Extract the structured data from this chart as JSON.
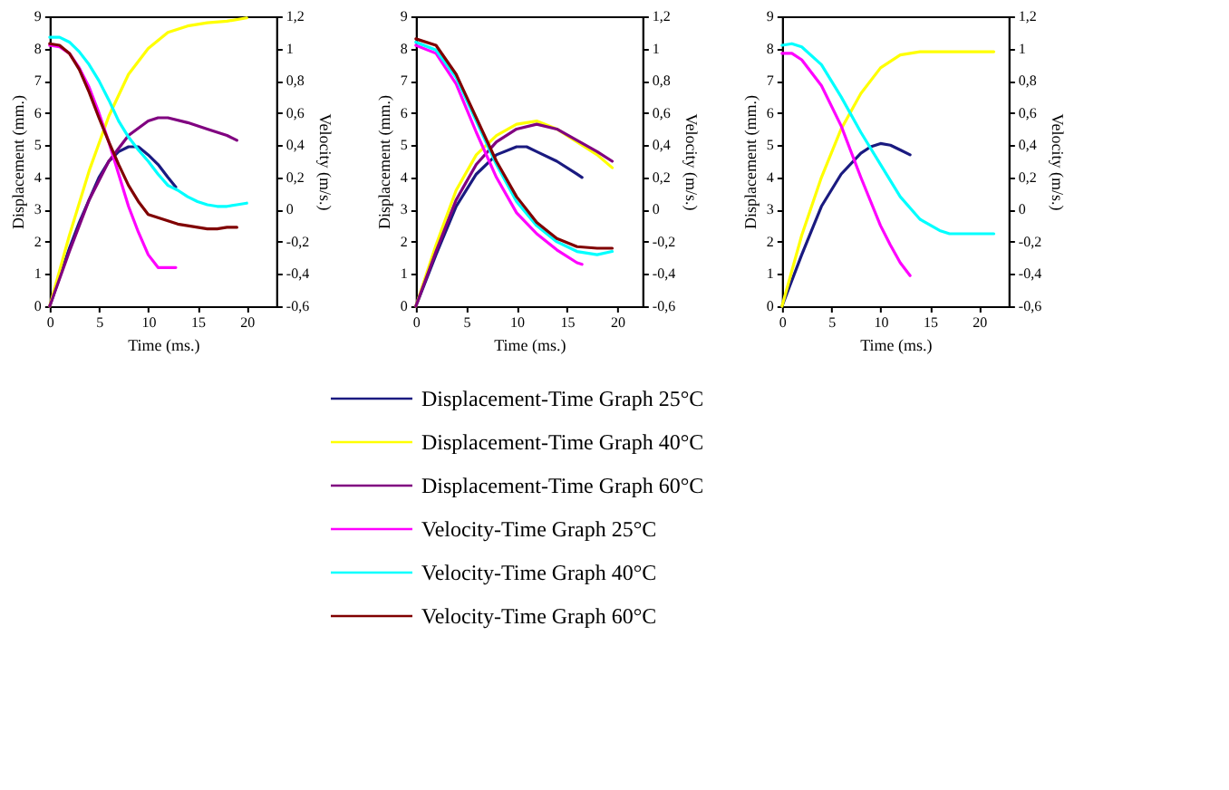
{
  "chart_data": [
    {
      "type": "line",
      "xlabel": "Time (ms.)",
      "ylabel": "Displacement (mm.)",
      "y2label": "Velocity (m/s.)",
      "xlim": [
        0,
        23
      ],
      "xticks": [
        0,
        5,
        10,
        15,
        20
      ],
      "ylim": [
        0,
        9
      ],
      "yticks": [
        0,
        1,
        2,
        3,
        4,
        5,
        6,
        7,
        8,
        9
      ],
      "y2lim": [
        -0.6,
        1.2
      ],
      "y2ticks": [
        {
          "value": -0.6,
          "label": "-0,6"
        },
        {
          "value": -0.4,
          "label": "-0,4"
        },
        {
          "value": -0.2,
          "label": "-0,2"
        },
        0,
        {
          "value": 0.2,
          "label": "0,2"
        },
        {
          "value": 0.4,
          "label": "0,4"
        },
        {
          "value": 0.6,
          "label": "0,6"
        },
        {
          "value": 0.8,
          "label": "0,8"
        },
        1,
        {
          "value": 1.2,
          "label": "1,2"
        }
      ],
      "grid": false,
      "legend": "bottom",
      "marker": "none",
      "line_style": "solid",
      "series": [
        {
          "name": "Displacement-Time Graph 25°C",
          "color": "#1a1a80",
          "x": [
            0,
            1,
            2,
            3,
            4,
            5,
            6,
            7,
            8,
            9,
            10,
            11,
            12,
            12.8
          ],
          "values": [
            0,
            0.9,
            1.8,
            2.6,
            3.3,
            4.0,
            4.5,
            4.8,
            4.95,
            4.95,
            4.7,
            4.4,
            4.0,
            3.7
          ]
        },
        {
          "name": "Displacement-Time Graph 40°C",
          "color": "#ffff00",
          "x": [
            0,
            2,
            4,
            6,
            8,
            10,
            12,
            14,
            16,
            18,
            20
          ],
          "values": [
            0,
            2.2,
            4.2,
            5.9,
            7.2,
            8.0,
            8.5,
            8.7,
            8.8,
            8.85,
            8.95
          ]
        },
        {
          "name": "Displacement-Time Graph 60°C",
          "color": "#800080",
          "x": [
            0,
            2,
            4,
            6,
            8,
            10,
            11,
            12,
            14,
            16,
            18,
            19
          ],
          "values": [
            0,
            1.7,
            3.3,
            4.5,
            5.3,
            5.75,
            5.85,
            5.85,
            5.7,
            5.5,
            5.3,
            5.15
          ]
        },
        {
          "name": "Velocity-Time Graph 25°C",
          "color": "#ff00ff",
          "axis": "y2",
          "x": [
            0,
            1,
            2,
            3,
            4,
            5,
            6,
            7,
            8,
            9,
            10,
            11,
            12,
            12.8
          ],
          "values": [
            1.02,
            1.01,
            0.97,
            0.88,
            0.76,
            0.6,
            0.42,
            0.22,
            0.02,
            -0.14,
            -0.28,
            -0.36,
            -0.36,
            -0.36
          ]
        },
        {
          "name": "Velocity-Time Graph 40°C",
          "color": "#00ffff",
          "axis": "y2",
          "x": [
            0,
            1,
            2,
            3,
            4,
            5,
            6,
            7,
            8,
            9,
            10,
            11,
            12,
            13,
            14,
            15,
            16,
            17,
            18,
            19,
            20
          ],
          "values": [
            1.07,
            1.07,
            1.04,
            0.98,
            0.9,
            0.8,
            0.68,
            0.55,
            0.45,
            0.37,
            0.3,
            0.22,
            0.15,
            0.12,
            0.08,
            0.05,
            0.03,
            0.02,
            0.02,
            0.03,
            0.04
          ]
        },
        {
          "name": "Velocity-Time Graph 60°C",
          "color": "#800000",
          "axis": "y2",
          "x": [
            0,
            1,
            2,
            3,
            4,
            5,
            6,
            7,
            8,
            9,
            10,
            11,
            12,
            13,
            14,
            15,
            16,
            17,
            18,
            19
          ],
          "values": [
            1.03,
            1.02,
            0.97,
            0.87,
            0.73,
            0.57,
            0.42,
            0.28,
            0.15,
            0.05,
            -0.03,
            -0.05,
            -0.07,
            -0.09,
            -0.1,
            -0.11,
            -0.12,
            -0.12,
            -0.11,
            -0.11
          ]
        }
      ]
    },
    {
      "type": "line",
      "xlabel": "Time (ms.)",
      "ylabel": "Displacement (mm.)",
      "y2label": "Velocity (m/s.)",
      "xlim": [
        0,
        22.5
      ],
      "xticks": [
        0,
        5,
        10,
        15,
        20
      ],
      "ylim": [
        0,
        9
      ],
      "yticks": [
        0,
        1,
        2,
        3,
        4,
        5,
        6,
        7,
        8,
        9
      ],
      "y2lim": [
        -0.6,
        1.2
      ],
      "y2ticks": [
        {
          "value": -0.6,
          "label": "-0,6"
        },
        {
          "value": -0.4,
          "label": "-0,4"
        },
        {
          "value": -0.2,
          "label": "-0,2"
        },
        0,
        {
          "value": 0.2,
          "label": "0,2"
        },
        {
          "value": 0.4,
          "label": "0,4"
        },
        {
          "value": 0.6,
          "label": "0,6"
        },
        {
          "value": 0.8,
          "label": "0,8"
        },
        1,
        {
          "value": 1.2,
          "label": "1,2"
        }
      ],
      "grid": false,
      "legend": "bottom",
      "marker": "none",
      "line_style": "solid",
      "series": [
        {
          "name": "Displacement-Time Graph 25°C",
          "color": "#1a1a80",
          "x": [
            0,
            2,
            4,
            6,
            8,
            10,
            11,
            12,
            14,
            16,
            16.5
          ],
          "values": [
            0,
            1.6,
            3.1,
            4.1,
            4.7,
            4.95,
            4.95,
            4.8,
            4.5,
            4.1,
            4.0
          ]
        },
        {
          "name": "Displacement-Time Graph 40°C",
          "color": "#ffff00",
          "x": [
            0,
            2,
            4,
            6,
            8,
            10,
            12,
            14,
            16,
            18,
            19.5
          ],
          "values": [
            0,
            1.9,
            3.6,
            4.7,
            5.3,
            5.65,
            5.75,
            5.5,
            5.1,
            4.7,
            4.3
          ]
        },
        {
          "name": "Displacement-Time Graph 60°C",
          "color": "#800080",
          "x": [
            0,
            2,
            4,
            6,
            8,
            10,
            12,
            14,
            16,
            18,
            19.5
          ],
          "values": [
            0,
            1.7,
            3.3,
            4.4,
            5.1,
            5.5,
            5.65,
            5.5,
            5.15,
            4.8,
            4.5
          ]
        },
        {
          "name": "Velocity-Time Graph 25°C",
          "color": "#ff00ff",
          "axis": "y2",
          "x": [
            0,
            2,
            4,
            6,
            8,
            10,
            12,
            14,
            16,
            16.5
          ],
          "values": [
            1.02,
            0.97,
            0.78,
            0.48,
            0.2,
            -0.02,
            -0.15,
            -0.25,
            -0.33,
            -0.34
          ]
        },
        {
          "name": "Velocity-Time Graph 40°C",
          "color": "#00ffff",
          "axis": "y2",
          "x": [
            0,
            2,
            4,
            6,
            8,
            10,
            12,
            14,
            16,
            18,
            19.5
          ],
          "values": [
            1.04,
            0.99,
            0.82,
            0.55,
            0.28,
            0.05,
            -0.1,
            -0.2,
            -0.26,
            -0.28,
            -0.26
          ]
        },
        {
          "name": "Velocity-Time Graph 60°C",
          "color": "#800000",
          "axis": "y2",
          "x": [
            0,
            2,
            4,
            6,
            8,
            10,
            12,
            14,
            16,
            18,
            19.5
          ],
          "values": [
            1.06,
            1.02,
            0.84,
            0.57,
            0.3,
            0.08,
            -0.08,
            -0.18,
            -0.23,
            -0.24,
            -0.24
          ]
        }
      ]
    },
    {
      "type": "line",
      "xlabel": "Time (ms.)",
      "ylabel": "Displacement (mm.)",
      "y2label": "Velocity (m/s.)",
      "xlim": [
        0,
        23
      ],
      "xticks": [
        0,
        5,
        10,
        15,
        20
      ],
      "ylim": [
        0,
        9
      ],
      "yticks": [
        0,
        1,
        2,
        3,
        4,
        5,
        6,
        7,
        8,
        9
      ],
      "y2lim": [
        -0.6,
        1.2
      ],
      "y2ticks": [
        {
          "value": -0.6,
          "label": "-0,6"
        },
        {
          "value": -0.4,
          "label": "-0,4"
        },
        {
          "value": -0.2,
          "label": "-0,2"
        },
        0,
        {
          "value": 0.2,
          "label": "0,2"
        },
        {
          "value": 0.4,
          "label": "0,4"
        },
        {
          "value": 0.6,
          "label": "0,6"
        },
        {
          "value": 0.8,
          "label": "0,8"
        },
        1,
        {
          "value": 1.2,
          "label": "1,2"
        }
      ],
      "grid": false,
      "legend": "bottom",
      "marker": "none",
      "line_style": "solid",
      "series": [
        {
          "name": "Displacement-Time Graph 25°C",
          "color": "#1a1a80",
          "x": [
            0,
            2,
            4,
            6,
            8,
            9,
            10,
            11,
            12,
            13
          ],
          "values": [
            0,
            1.6,
            3.1,
            4.1,
            4.75,
            4.95,
            5.05,
            5.0,
            4.85,
            4.7
          ]
        },
        {
          "name": "Displacement-Time Graph 40°C",
          "color": "#ffff00",
          "x": [
            0,
            2,
            4,
            6,
            8,
            10,
            12,
            14,
            16,
            18,
            20,
            21.5
          ],
          "values": [
            0,
            2.2,
            4.0,
            5.5,
            6.6,
            7.4,
            7.8,
            7.9,
            7.9,
            7.9,
            7.9,
            7.9
          ]
        },
        {
          "name": "Velocity-Time Graph 25°C",
          "color": "#ff00ff",
          "axis": "y2",
          "x": [
            0,
            1,
            2,
            4,
            6,
            8,
            10,
            11,
            12,
            13
          ],
          "values": [
            0.97,
            0.97,
            0.93,
            0.77,
            0.52,
            0.2,
            -0.1,
            -0.22,
            -0.33,
            -0.41
          ]
        },
        {
          "name": "Velocity-Time Graph 40°C",
          "color": "#00ffff",
          "axis": "y2",
          "x": [
            0,
            1,
            2,
            4,
            6,
            8,
            10,
            12,
            14,
            16,
            17,
            18,
            20,
            21.5
          ],
          "values": [
            1.02,
            1.03,
            1.01,
            0.9,
            0.7,
            0.48,
            0.28,
            0.08,
            -0.06,
            -0.13,
            -0.15,
            -0.15,
            -0.15,
            -0.15
          ]
        }
      ]
    }
  ]
}
